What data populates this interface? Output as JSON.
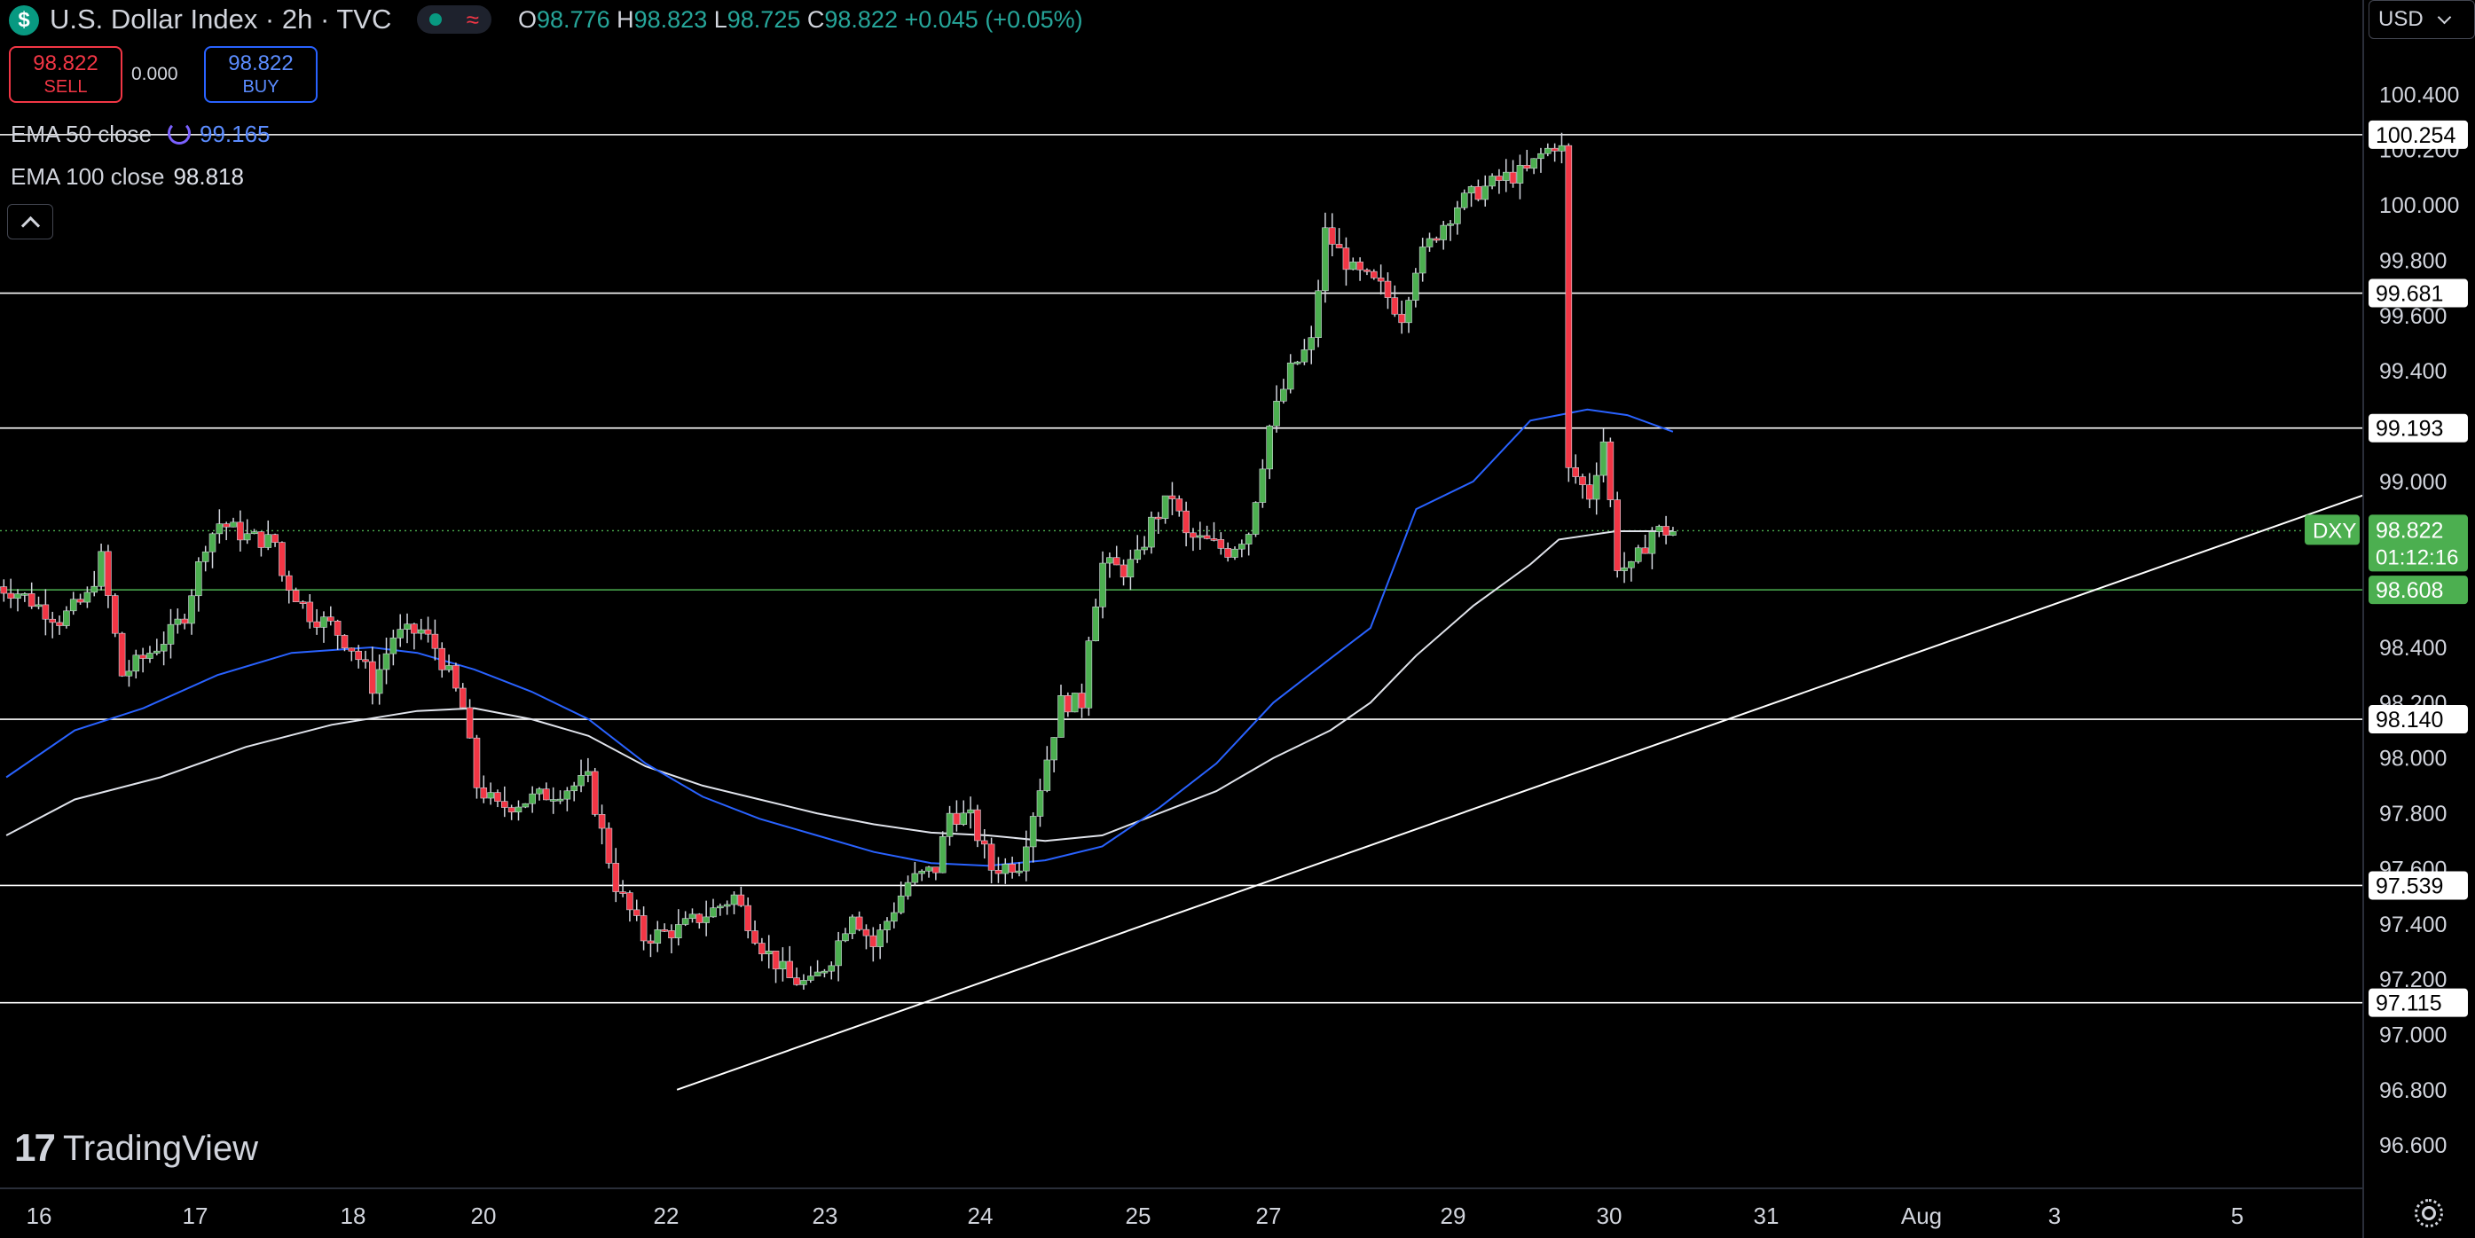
{
  "header": {
    "icon_glyph": "$",
    "title": "U.S. Dollar Index · 2h · TVC",
    "ohlc": {
      "o_label": "O",
      "o": "98.776",
      "h_label": "H",
      "h": "98.823",
      "l_label": "L",
      "l": "98.725",
      "c_label": "C",
      "c": "98.822",
      "change": "+0.045 (+0.05%)"
    }
  },
  "trade": {
    "sell_price": "98.822",
    "sell_label": "SELL",
    "spread": "0.000",
    "buy_price": "98.822",
    "buy_label": "BUY"
  },
  "indicators": [
    {
      "label": "EMA 50 close",
      "value": "99.165",
      "color": "#2962ff"
    },
    {
      "label": "EMA 100 close",
      "value": "98.818",
      "color": "#e0e3eb"
    }
  ],
  "currency": "USD",
  "watermark": {
    "logo": "17",
    "text": "TradingView"
  },
  "icons": [
    "dollar-icon",
    "market-open-icon",
    "wave-icon",
    "loop-icon",
    "chevron-up-icon",
    "chevron-down-icon",
    "tradingview-logo-icon",
    "gear-icon"
  ],
  "colors": {
    "up": "#26a69a",
    "down": "#f23645",
    "green_candle": "#4caf50",
    "ema50": "#2962ff",
    "ema100": "#e0e3eb",
    "background": "#000000",
    "level_line": "#ffffff",
    "support": "#4caf50"
  },
  "chart_data": {
    "type": "candlestick",
    "symbol": "DXY",
    "timeframe": "2h",
    "ylim": [
      96.45,
      100.6
    ],
    "y_ticks": [
      "100.400",
      "100.200",
      "100.000",
      "99.800",
      "99.600",
      "99.400",
      "99.200",
      "99.000",
      "98.800",
      "98.600",
      "98.400",
      "98.200",
      "98.000",
      "97.800",
      "97.600",
      "97.400",
      "97.200",
      "97.000",
      "96.800",
      "96.600"
    ],
    "x_tick_labels": [
      {
        "label": "16",
        "t": 0
      },
      {
        "label": "17",
        "t": 29.0
      },
      {
        "label": "18",
        "t": 51.0
      },
      {
        "label": "20",
        "t": 70.0
      },
      {
        "label": "22",
        "t": 96.5
      },
      {
        "label": "23",
        "t": 117.5
      },
      {
        "label": "24",
        "t": 140.0
      },
      {
        "label": "25",
        "t": 162.5
      },
      {
        "label": "27",
        "t": 185.0
      },
      {
        "label": "29",
        "t": 209.0
      },
      {
        "label": "30",
        "t": 231.5
      },
      {
        "label": "31",
        "t": 254.0
      },
      {
        "label": "Aug",
        "t": 277.0
      },
      {
        "label": "3",
        "t": 296.0
      },
      {
        "label": "5",
        "t": 322.0
      }
    ],
    "horizontal_levels": [
      {
        "value": 100.254,
        "label": "100.254",
        "color": "#ffffff"
      },
      {
        "value": 99.681,
        "label": "99.681",
        "color": "#ffffff"
      },
      {
        "value": 99.193,
        "label": "99.193",
        "color": "#ffffff"
      },
      {
        "value": 98.608,
        "label": "98.608",
        "color": "#4caf50"
      },
      {
        "value": 98.14,
        "label": "98.140",
        "color": "#ffffff"
      },
      {
        "value": 97.539,
        "label": "97.539",
        "color": "#ffffff"
      },
      {
        "value": 97.115,
        "label": "97.115",
        "color": "#ffffff"
      }
    ],
    "current_price": {
      "symbol": "DXY",
      "value": 98.822,
      "label": "98.822",
      "countdown": "01:12:16"
    },
    "trendline": {
      "from": {
        "t": 115.5,
        "y": 96.8
      },
      "to": {
        "t": 337.5,
        "y": 98.95
      }
    },
    "ema50": [
      [
        -2,
        97.93
      ],
      [
        10,
        98.1
      ],
      [
        22,
        98.18
      ],
      [
        35,
        98.3
      ],
      [
        48,
        98.38
      ],
      [
        62,
        98.4
      ],
      [
        70,
        98.38
      ],
      [
        80,
        98.32
      ],
      [
        90,
        98.24
      ],
      [
        100,
        98.14
      ],
      [
        110,
        97.98
      ],
      [
        120,
        97.86
      ],
      [
        130,
        97.78
      ],
      [
        140,
        97.72
      ],
      [
        150,
        97.66
      ],
      [
        160,
        97.62
      ],
      [
        170,
        97.61
      ],
      [
        180,
        97.63
      ],
      [
        190,
        97.68
      ],
      [
        200,
        97.82
      ],
      [
        210,
        97.98
      ],
      [
        220,
        98.2
      ],
      [
        230,
        98.36
      ],
      [
        237,
        98.47
      ],
      [
        245,
        98.9
      ],
      [
        255,
        99.0
      ],
      [
        265,
        99.22
      ],
      [
        275,
        99.26
      ],
      [
        282,
        99.24
      ],
      [
        290,
        99.18
      ]
    ],
    "ema100": [
      [
        -2,
        97.72
      ],
      [
        10,
        97.85
      ],
      [
        25,
        97.93
      ],
      [
        40,
        98.04
      ],
      [
        55,
        98.12
      ],
      [
        70,
        98.17
      ],
      [
        80,
        98.18
      ],
      [
        90,
        98.14
      ],
      [
        100,
        98.08
      ],
      [
        110,
        97.97
      ],
      [
        120,
        97.9
      ],
      [
        130,
        97.85
      ],
      [
        140,
        97.8
      ],
      [
        150,
        97.76
      ],
      [
        160,
        97.73
      ],
      [
        170,
        97.72
      ],
      [
        180,
        97.7
      ],
      [
        190,
        97.72
      ],
      [
        200,
        97.8
      ],
      [
        210,
        97.88
      ],
      [
        220,
        98.0
      ],
      [
        230,
        98.1
      ],
      [
        237,
        98.2
      ],
      [
        245,
        98.37
      ],
      [
        255,
        98.55
      ],
      [
        265,
        98.7
      ],
      [
        270,
        98.79
      ],
      [
        280,
        98.82
      ],
      [
        290,
        98.82
      ]
    ]
  }
}
